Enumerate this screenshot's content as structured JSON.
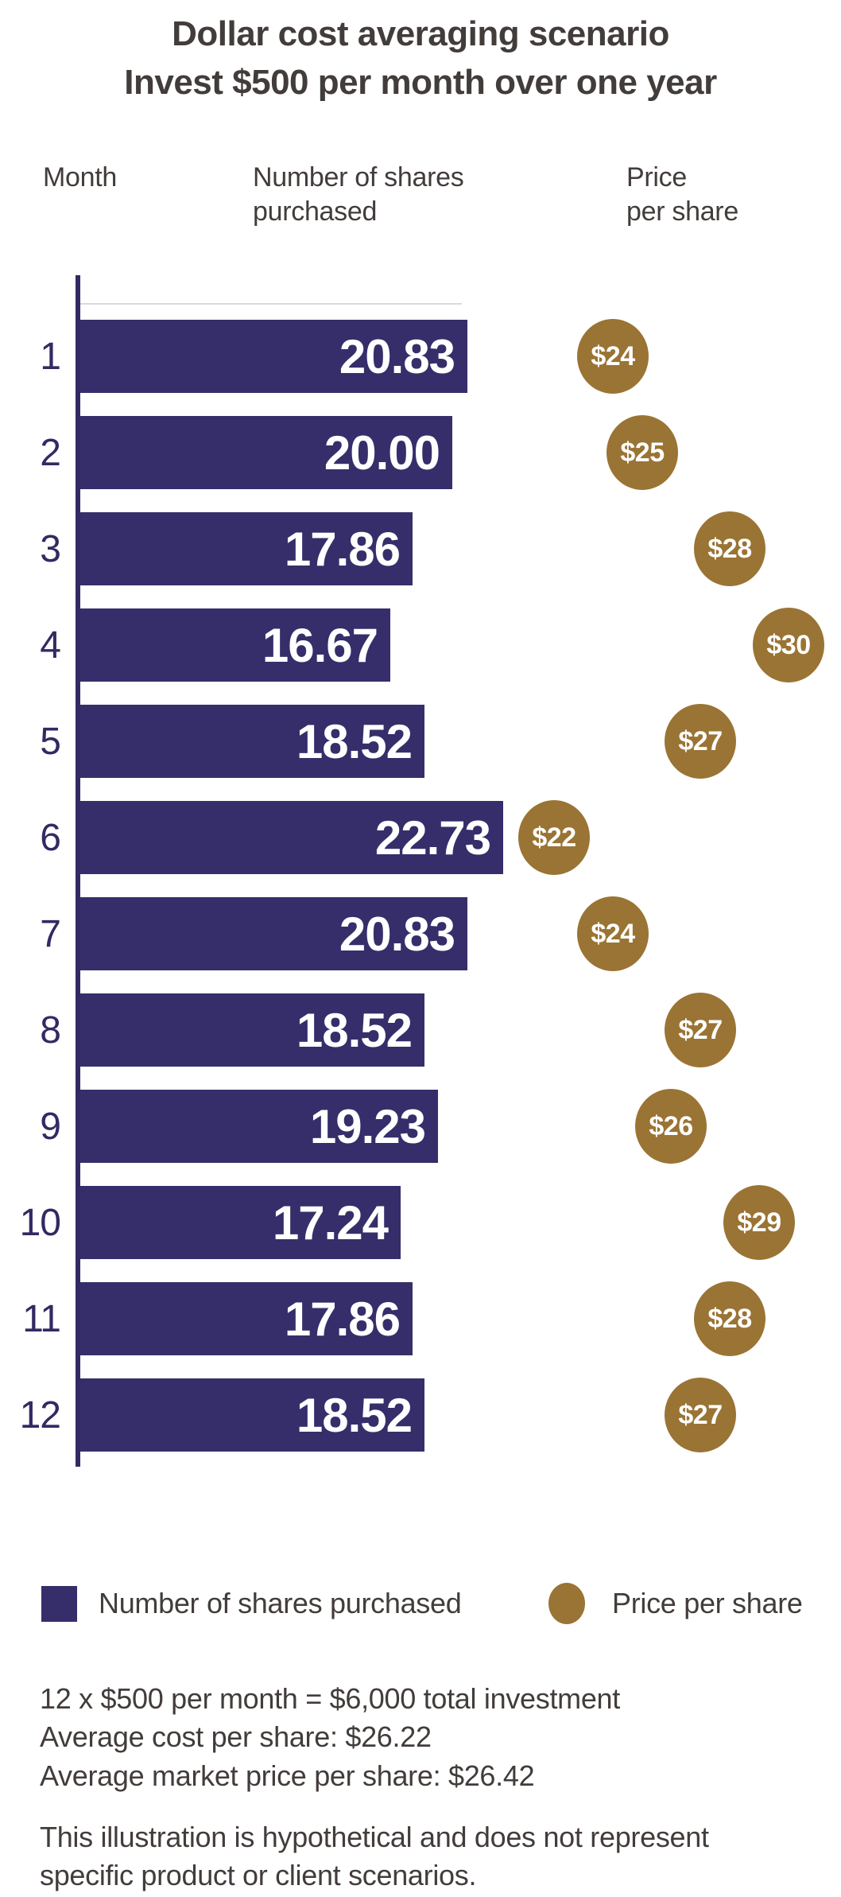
{
  "title": {
    "line1": "Dollar cost averaging scenario",
    "line2": "Invest $500 per month over one year"
  },
  "headers": {
    "month": "Month",
    "shares": "Number of shares\npurchased",
    "price": "Price\nper share"
  },
  "chart_data": {
    "type": "bar",
    "orientation": "horizontal",
    "title": "Dollar cost averaging scenario",
    "subtitle": "Invest $500 per month over one year",
    "categories": [
      "1",
      "2",
      "3",
      "4",
      "5",
      "6",
      "7",
      "8",
      "9",
      "10",
      "11",
      "12"
    ],
    "series": [
      {
        "name": "Number of shares purchased",
        "values": [
          20.83,
          20.0,
          17.86,
          16.67,
          18.52,
          22.73,
          20.83,
          18.52,
          19.23,
          17.24,
          17.86,
          18.52
        ]
      },
      {
        "name": "Price per share",
        "values": [
          24,
          25,
          28,
          30,
          27,
          22,
          24,
          27,
          26,
          29,
          28,
          27
        ]
      }
    ],
    "rows": [
      {
        "month": "1",
        "shares": 20.83,
        "shares_label": "20.83",
        "price": 24,
        "price_label": "$24"
      },
      {
        "month": "2",
        "shares": 20.0,
        "shares_label": "20.00",
        "price": 25,
        "price_label": "$25"
      },
      {
        "month": "3",
        "shares": 17.86,
        "shares_label": "17.86",
        "price": 28,
        "price_label": "$28"
      },
      {
        "month": "4",
        "shares": 16.67,
        "shares_label": "16.67",
        "price": 30,
        "price_label": "$30"
      },
      {
        "month": "5",
        "shares": 18.52,
        "shares_label": "18.52",
        "price": 27,
        "price_label": "$27"
      },
      {
        "month": "6",
        "shares": 22.73,
        "shares_label": "22.73",
        "price": 22,
        "price_label": "$22"
      },
      {
        "month": "7",
        "shares": 20.83,
        "shares_label": "20.83",
        "price": 24,
        "price_label": "$24"
      },
      {
        "month": "8",
        "shares": 18.52,
        "shares_label": "18.52",
        "price": 27,
        "price_label": "$27"
      },
      {
        "month": "9",
        "shares": 19.23,
        "shares_label": "19.23",
        "price": 26,
        "price_label": "$26"
      },
      {
        "month": "10",
        "shares": 17.24,
        "shares_label": "17.24",
        "price": 29,
        "price_label": "$29"
      },
      {
        "month": "11",
        "shares": 17.86,
        "shares_label": "17.86",
        "price": 28,
        "price_label": "$28"
      },
      {
        "month": "12",
        "shares": 18.52,
        "shares_label": "18.52",
        "price": 27,
        "price_label": "$27"
      }
    ],
    "xlabel": "",
    "ylabel": "Month",
    "xlim_shares": [
      0,
      22.73
    ],
    "grid": "single-top-line",
    "legend_position": "bottom"
  },
  "legend": {
    "shares_label": "Number of shares purchased",
    "price_label": "Price per share"
  },
  "footer": {
    "lines": [
      "12 x $500 per month = $6,000 total investment",
      "Average cost per share: $26.22",
      "Average market price per share: $26.42"
    ],
    "disclaimer": "This illustration is hypothetical and does not represent specific product or client scenarios."
  },
  "colors": {
    "bar_purple": "#362e6a",
    "axis_purple": "#322a63",
    "gold": "#9a7434",
    "text": "#423c3a",
    "gridline": "#d9d9e2",
    "value_text": "#ffffff"
  }
}
